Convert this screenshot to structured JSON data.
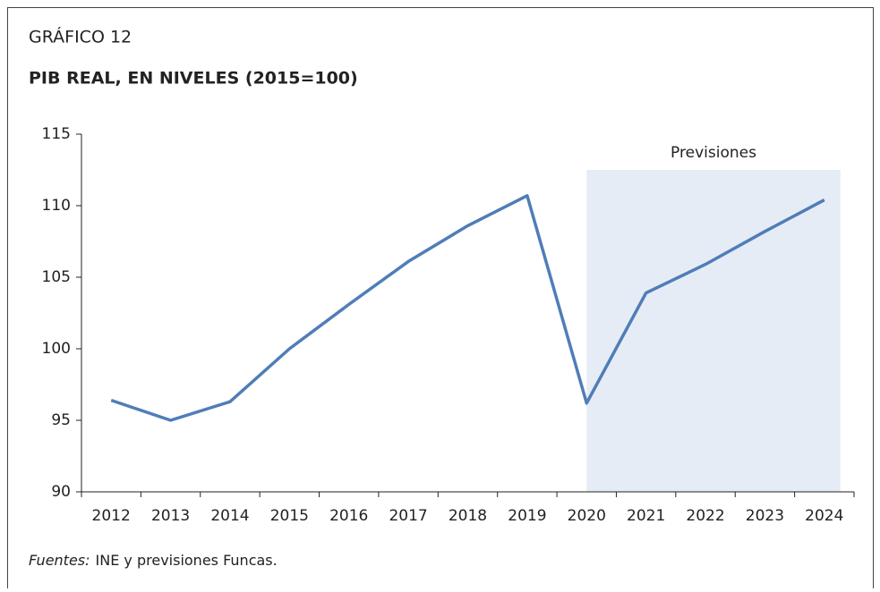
{
  "header": "GRÁFICO 12",
  "chart_data": {
    "type": "line",
    "title": "PIB REAL, EN NIVELES (2015=100)",
    "categories": [
      "2012",
      "2013",
      "2014",
      "2015",
      "2016",
      "2017",
      "2018",
      "2019",
      "2020",
      "2021",
      "2022",
      "2023",
      "2024"
    ],
    "series": [
      {
        "name": "PIB real",
        "color": "#4f7db8",
        "values": [
          96.4,
          95.0,
          96.3,
          100.0,
          103.1,
          106.1,
          108.6,
          110.7,
          96.2,
          103.9,
          105.9,
          108.2,
          110.4
        ]
      }
    ],
    "ylim": [
      90,
      115
    ],
    "yticks": [
      90,
      95,
      100,
      105,
      110,
      115
    ],
    "annotation": {
      "text": "Previsiones",
      "start": "2020",
      "top": 112.5,
      "color": "#e6ecf5"
    }
  },
  "source": {
    "label": "Fuentes:",
    "text": "INE y previsiones Funcas."
  }
}
